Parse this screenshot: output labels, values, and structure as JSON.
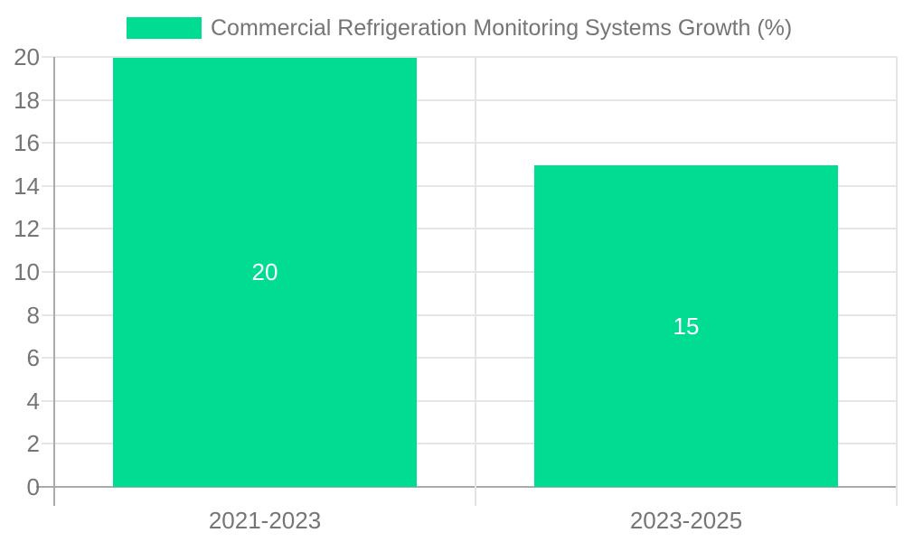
{
  "legend": {
    "label": "Commercial Refrigeration Monitoring Systems Growth (%)"
  },
  "chart_data": {
    "type": "bar",
    "title": "Commercial Refrigeration Monitoring Systems Growth (%)",
    "categories": [
      "2021-2023",
      "2023-2025"
    ],
    "values": [
      20,
      15
    ],
    "bar_labels": [
      "20",
      "15"
    ],
    "xlabel": "",
    "ylabel": "",
    "ylim": [
      0,
      20
    ],
    "yticks": [
      0,
      2,
      4,
      6,
      8,
      10,
      12,
      14,
      16,
      18,
      20
    ],
    "grid": "on",
    "legend_position": "top-left"
  },
  "colors": {
    "bar": "#00DC92",
    "grid_line": "#e6e6e6",
    "axis_line": "#ababab",
    "band_line": "#e4e4e4",
    "tick_text": "#757575",
    "bar_label_text": "#ffffff",
    "background": "#ffffff"
  }
}
